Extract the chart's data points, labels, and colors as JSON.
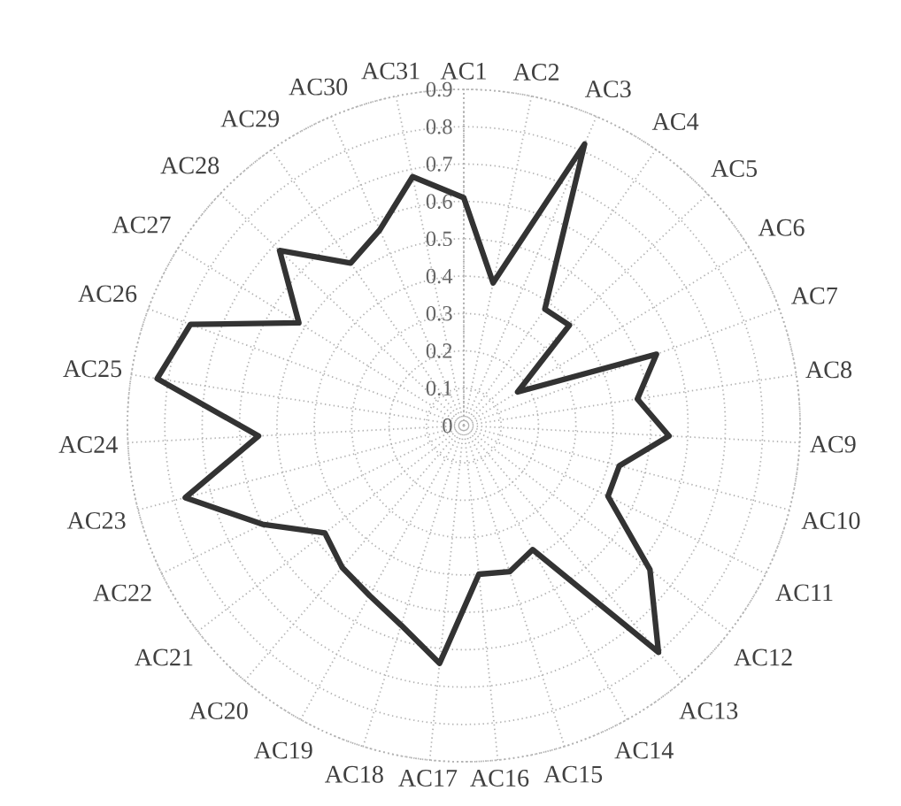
{
  "chart_data": {
    "type": "radar",
    "categories": [
      "AC1",
      "AC2",
      "AC3",
      "AC4",
      "AC5",
      "AC6",
      "AC7",
      "AC8",
      "AC9",
      "AC10",
      "AC11",
      "AC12",
      "AC13",
      "AC14",
      "AC15",
      "AC16",
      "AC17",
      "AC18",
      "AC19",
      "AC20",
      "AC21",
      "AC22",
      "AC23",
      "AC24",
      "AC25",
      "AC26",
      "AC27",
      "AC28",
      "AC29",
      "AC30",
      "AC31"
    ],
    "series": [
      {
        "color": "#333333",
        "values": [
          0.61,
          0.39,
          0.82,
          0.38,
          0.39,
          0.17,
          0.55,
          0.47,
          0.55,
          0.43,
          0.43,
          0.63,
          0.8,
          0.38,
          0.41,
          0.4,
          0.64,
          0.56,
          0.52,
          0.5,
          0.47,
          0.6,
          0.77,
          0.55,
          0.83,
          0.78,
          0.52,
          0.68,
          0.53,
          0.57,
          0.68
        ]
      }
    ],
    "ylim": [
      0,
      0.9
    ],
    "yticks": [
      0,
      0.1,
      0.2,
      0.3,
      0.4,
      0.5,
      0.6,
      0.7,
      0.8,
      0.9
    ],
    "grid": true
  }
}
